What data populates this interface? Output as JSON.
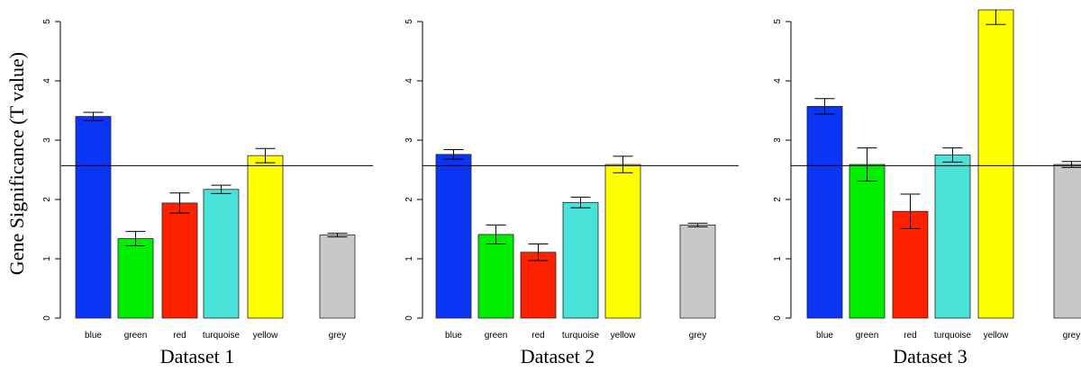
{
  "ylabel": "Gene Significance (T value)",
  "colors": {
    "blue": "#0a35f5",
    "green": "#00ee00",
    "red": "#ff2200",
    "turquoise": "#48e2d9",
    "yellow": "#ffff00",
    "grey": "#c8c8c8"
  },
  "chart_data": [
    {
      "type": "bar",
      "xlabel": "Dataset 1",
      "categories": [
        "blue",
        "green",
        "red",
        "turquoise",
        "yellow",
        "grey"
      ],
      "values": [
        3.4,
        1.34,
        1.94,
        2.17,
        2.74,
        1.4
      ],
      "errors": [
        0.07,
        0.12,
        0.17,
        0.07,
        0.12,
        0.03
      ],
      "reference_line": 2.57,
      "ylim": [
        0,
        5
      ],
      "yticks": [
        "0",
        "1",
        "2",
        "3",
        "4",
        "5"
      ]
    },
    {
      "type": "bar",
      "xlabel": "Dataset 2",
      "categories": [
        "blue",
        "green",
        "red",
        "turquoise",
        "yellow",
        "grey"
      ],
      "values": [
        2.76,
        1.41,
        1.11,
        1.95,
        2.59,
        1.57
      ],
      "errors": [
        0.08,
        0.16,
        0.14,
        0.09,
        0.14,
        0.03
      ],
      "reference_line": 2.57,
      "ylim": [
        0,
        5
      ],
      "yticks": [
        "0",
        "1",
        "2",
        "3",
        "4",
        "5"
      ]
    },
    {
      "type": "bar",
      "xlabel": "Dataset 3",
      "categories": [
        "blue",
        "green",
        "red",
        "turquoise",
        "yellow",
        "grey"
      ],
      "values": [
        3.57,
        2.59,
        1.8,
        2.75,
        5.2,
        2.59
      ],
      "errors": [
        0.13,
        0.28,
        0.29,
        0.12,
        0.25,
        0.05
      ],
      "reference_line": 2.57,
      "ylim": [
        0,
        5
      ],
      "yticks": [
        "0",
        "1",
        "2",
        "3",
        "4",
        "5"
      ]
    }
  ]
}
